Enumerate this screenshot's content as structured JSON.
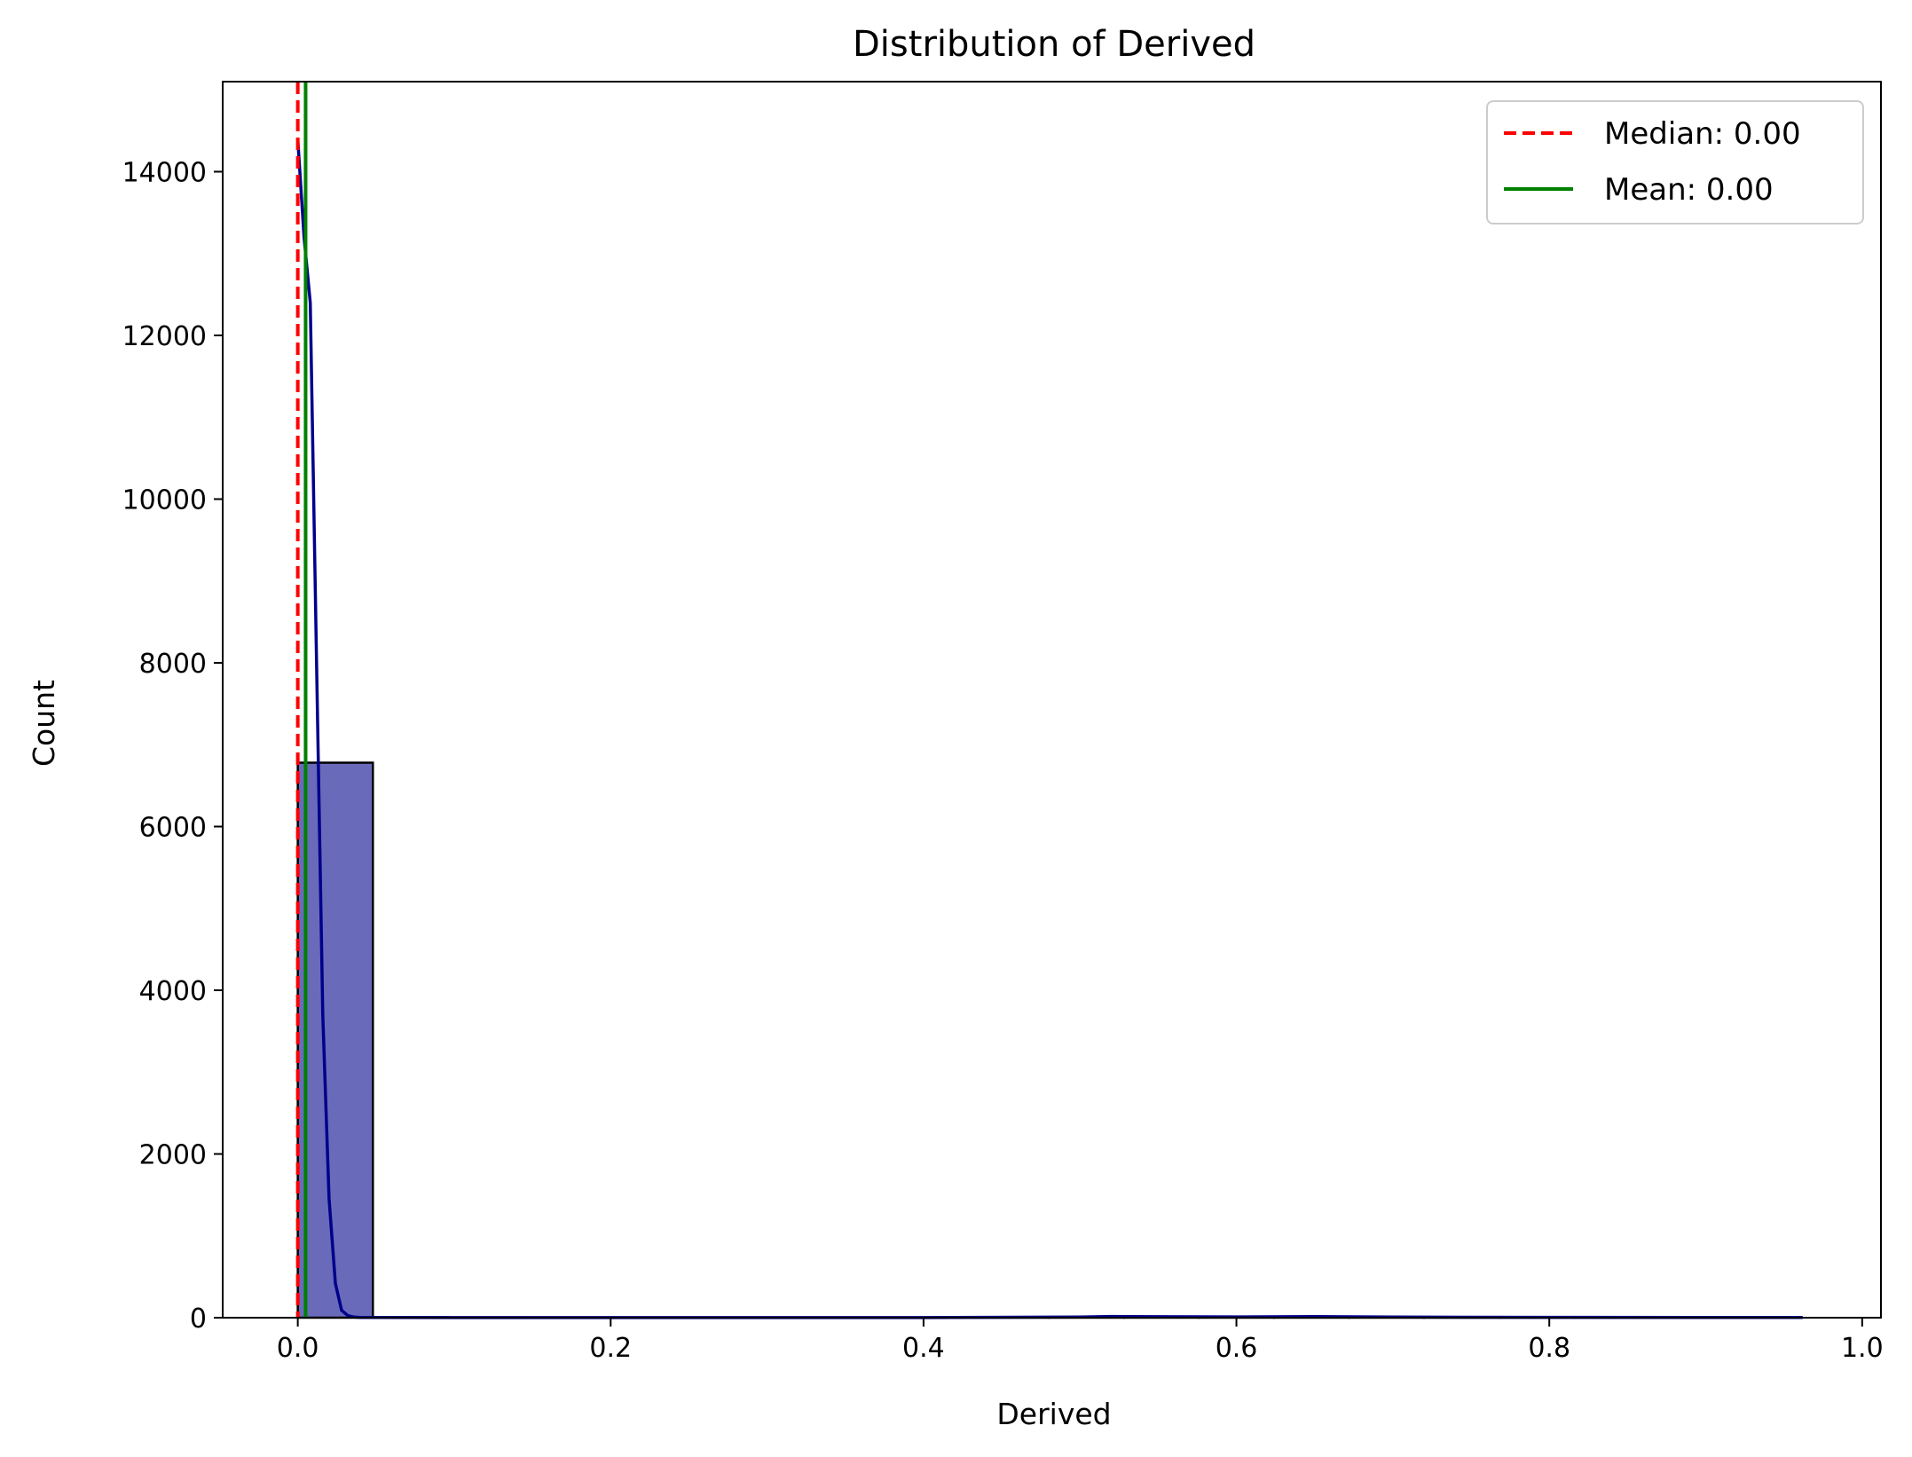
{
  "chart_data": {
    "type": "histogram",
    "title": "Distribution of Derived",
    "xlabel": "Derived",
    "ylabel": "Count",
    "xlim": [
      -0.048,
      1.012
    ],
    "ylim": [
      0,
      15100
    ],
    "xticks": [
      0.0,
      0.2,
      0.4,
      0.6,
      0.8,
      1.0
    ],
    "xtick_labels": [
      "0.0",
      "0.2",
      "0.4",
      "0.6",
      "0.8",
      "1.0"
    ],
    "yticks": [
      0,
      2000,
      4000,
      6000,
      8000,
      10000,
      12000,
      14000
    ],
    "ytick_labels": [
      "0",
      "2000",
      "4000",
      "6000",
      "8000",
      "10000",
      "12000",
      "14000"
    ],
    "grid": false,
    "legend_position": "top-right",
    "bins": [
      {
        "x0": 0.0,
        "x1": 0.048,
        "count": 6780
      },
      {
        "x0": 0.048,
        "x1": 0.096,
        "count": 5
      },
      {
        "x0": 0.096,
        "x1": 0.144,
        "count": 3
      },
      {
        "x0": 0.144,
        "x1": 0.192,
        "count": 2
      },
      {
        "x0": 0.192,
        "x1": 0.24,
        "count": 2
      },
      {
        "x0": 0.24,
        "x1": 0.288,
        "count": 1
      },
      {
        "x0": 0.288,
        "x1": 0.336,
        "count": 1
      },
      {
        "x0": 0.336,
        "x1": 0.384,
        "count": 1
      },
      {
        "x0": 0.384,
        "x1": 0.432,
        "count": 1
      },
      {
        "x0": 0.432,
        "x1": 0.48,
        "count": 1
      },
      {
        "x0": 0.48,
        "x1": 0.528,
        "count": 3
      },
      {
        "x0": 0.528,
        "x1": 0.576,
        "count": 3
      },
      {
        "x0": 0.576,
        "x1": 0.624,
        "count": 2
      },
      {
        "x0": 0.624,
        "x1": 0.672,
        "count": 3
      },
      {
        "x0": 0.672,
        "x1": 0.72,
        "count": 2
      },
      {
        "x0": 0.72,
        "x1": 0.768,
        "count": 1
      },
      {
        "x0": 0.768,
        "x1": 0.816,
        "count": 1
      },
      {
        "x0": 0.816,
        "x1": 0.864,
        "count": 1
      },
      {
        "x0": 0.864,
        "x1": 0.912,
        "count": 1
      },
      {
        "x0": 0.912,
        "x1": 0.96,
        "count": 1
      }
    ],
    "kde": {
      "x": [
        0.0,
        0.004,
        0.008,
        0.012,
        0.016,
        0.02,
        0.024,
        0.028,
        0.032,
        0.036,
        0.04,
        0.05,
        0.1,
        0.2,
        0.3,
        0.4,
        0.5,
        0.52,
        0.55,
        0.6,
        0.65,
        0.7,
        0.8,
        0.9,
        0.962
      ],
      "y": [
        14400,
        13200,
        12400,
        8000,
        3700,
        1450,
        420,
        90,
        25,
        8,
        3,
        2,
        1,
        1,
        1,
        1,
        8,
        15,
        12,
        10,
        13,
        8,
        4,
        3,
        2
      ]
    },
    "reference_lines": [
      {
        "name": "Median: 0.00",
        "value": 0.0,
        "style": "dashed",
        "color": "#ff0000"
      },
      {
        "name": "Mean: 0.00",
        "value": 0.005,
        "style": "solid",
        "color": "#008000"
      }
    ],
    "colors": {
      "bar_fill": "#6a6abb",
      "bar_edge": "#000000",
      "kde_line": "#00008b"
    }
  }
}
